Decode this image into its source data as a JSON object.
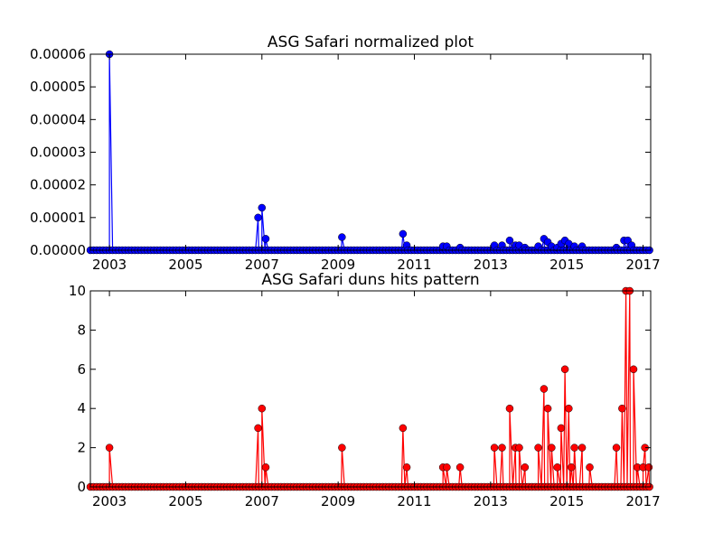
{
  "chart_data": [
    {
      "type": "line",
      "title": "ASG Safari normalized plot",
      "xlabel": "",
      "ylabel": "",
      "x_tick_labels": [
        "2003",
        "2005",
        "2007",
        "2009",
        "2011",
        "2013",
        "2015",
        "2017"
      ],
      "x_ticks": [
        2003,
        2005,
        2007,
        2009,
        2011,
        2013,
        2015,
        2017
      ],
      "y_tick_labels": [
        "0.00000",
        "0.00001",
        "0.00002",
        "0.00003",
        "0.00004",
        "0.00005",
        "0.00006"
      ],
      "y_ticks": [
        0,
        1e-05,
        2e-05,
        3e-05,
        4e-05,
        5e-05,
        6e-05
      ],
      "xlim": [
        2002.5,
        2017.2
      ],
      "ylim": [
        0,
        6e-05
      ],
      "grid": false,
      "colors": {
        "main": "#0000ff",
        "baseline": "#ff0000"
      },
      "series": [
        {
          "values_note": "",
          "points": [
            [
              2003.0,
              6e-05
            ],
            [
              2006.9,
              1e-05
            ],
            [
              2007.0,
              1.3e-05
            ],
            [
              2007.1,
              3.5e-06
            ],
            [
              2009.1,
              4e-06
            ],
            [
              2010.7,
              5e-06
            ],
            [
              2010.8,
              1.5e-06
            ],
            [
              2011.75,
              1.2e-06
            ],
            [
              2011.85,
              1.2e-06
            ],
            [
              2012.2,
              8e-07
            ],
            [
              2013.1,
              1.5e-06
            ],
            [
              2013.3,
              1.5e-06
            ],
            [
              2013.5,
              3e-06
            ],
            [
              2013.65,
              1.5e-06
            ],
            [
              2013.75,
              1.5e-06
            ],
            [
              2013.9,
              8e-07
            ],
            [
              2014.25,
              1.2e-06
            ],
            [
              2014.4,
              3.5e-06
            ],
            [
              2014.5,
              2.5e-06
            ],
            [
              2014.6,
              1.2e-06
            ],
            [
              2014.75,
              8e-07
            ],
            [
              2014.85,
              2e-06
            ],
            [
              2014.95,
              3e-06
            ],
            [
              2015.05,
              2e-06
            ],
            [
              2015.2,
              1.2e-06
            ],
            [
              2015.4,
              1.2e-06
            ],
            [
              2016.3,
              8e-07
            ],
            [
              2016.5,
              3e-06
            ],
            [
              2016.6,
              3e-06
            ],
            [
              2016.7,
              1.5e-06
            ]
          ]
        }
      ]
    },
    {
      "type": "line",
      "title": "ASG Safari duns hits pattern",
      "xlabel": "",
      "ylabel": "",
      "x_tick_labels": [
        "2003",
        "2005",
        "2007",
        "2009",
        "2011",
        "2013",
        "2015",
        "2017"
      ],
      "x_ticks": [
        2003,
        2005,
        2007,
        2009,
        2011,
        2013,
        2015,
        2017
      ],
      "y_tick_labels": [
        "0",
        "2",
        "4",
        "6",
        "8",
        "10"
      ],
      "y_ticks": [
        0,
        2,
        4,
        6,
        8,
        10
      ],
      "xlim": [
        2002.5,
        2017.2
      ],
      "ylim": [
        0,
        10
      ],
      "grid": false,
      "colors": {
        "main": "#ff0000"
      },
      "series": [
        {
          "points": [
            [
              2003.0,
              2
            ],
            [
              2006.9,
              3
            ],
            [
              2007.0,
              4
            ],
            [
              2007.1,
              1
            ],
            [
              2009.1,
              2
            ],
            [
              2010.7,
              3
            ],
            [
              2010.8,
              1
            ],
            [
              2011.75,
              1
            ],
            [
              2011.85,
              1
            ],
            [
              2012.2,
              1
            ],
            [
              2013.1,
              2
            ],
            [
              2013.3,
              2
            ],
            [
              2013.5,
              4
            ],
            [
              2013.65,
              2
            ],
            [
              2013.75,
              2
            ],
            [
              2013.9,
              1
            ],
            [
              2014.25,
              2
            ],
            [
              2014.4,
              5
            ],
            [
              2014.5,
              4
            ],
            [
              2014.6,
              2
            ],
            [
              2014.75,
              1
            ],
            [
              2014.85,
              3
            ],
            [
              2014.95,
              6
            ],
            [
              2015.05,
              4
            ],
            [
              2015.12,
              1
            ],
            [
              2015.2,
              2
            ],
            [
              2015.4,
              2
            ],
            [
              2015.6,
              1
            ],
            [
              2016.3,
              2
            ],
            [
              2016.45,
              4
            ],
            [
              2016.55,
              10
            ],
            [
              2016.65,
              10
            ],
            [
              2016.75,
              6
            ],
            [
              2016.85,
              1
            ],
            [
              2017.0,
              1
            ],
            [
              2017.05,
              2
            ],
            [
              2017.15,
              1
            ]
          ]
        }
      ]
    }
  ]
}
